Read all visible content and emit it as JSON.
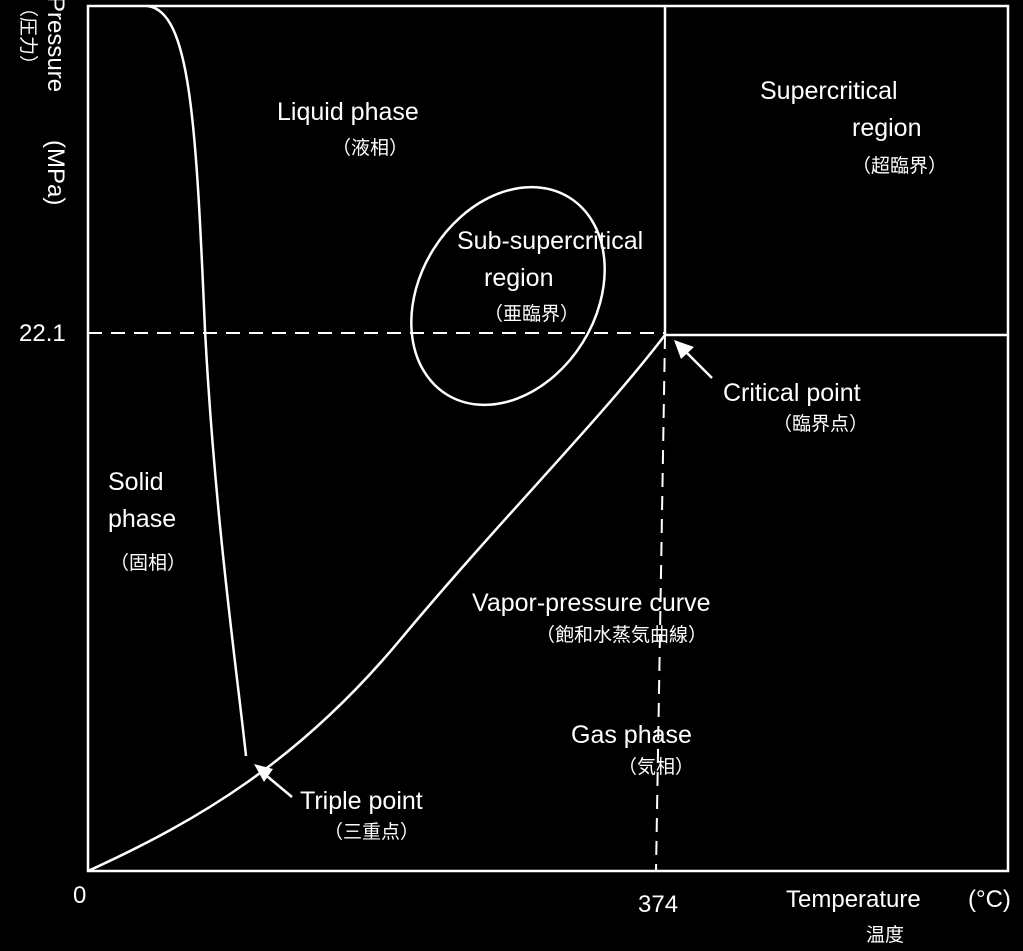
{
  "axes": {
    "y_label_en": "Pressure",
    "y_label_unit": "(MPa)",
    "y_label_jp": "（圧力）",
    "x_label_en": "Temperature",
    "x_label_unit": "(°C)",
    "x_label_jp": "温度",
    "origin": "0",
    "critical_pressure": "22.1",
    "critical_temperature": "374"
  },
  "regions": {
    "liquid": {
      "en": "Liquid phase",
      "jp": "（液相）"
    },
    "supercritical": {
      "en_line1": "Supercritical",
      "en_line2": "region",
      "jp": "（超臨界）"
    },
    "subsupercritical": {
      "en_line1": "Sub-supercritical",
      "en_line2": "region",
      "jp": "（亜臨界）"
    },
    "solid": {
      "en_line1": "Solid",
      "en_line2": "phase",
      "jp": "（固相）"
    },
    "vapor_curve": {
      "en": "Vapor-pressure curve",
      "jp": "（飽和水蒸気曲線）"
    },
    "gas": {
      "en": "Gas phase",
      "jp": "（気相）"
    }
  },
  "points": {
    "critical": {
      "en": "Critical point",
      "jp": "（臨界点）"
    },
    "triple": {
      "en": "Triple point",
      "jp": "（三重点）"
    }
  }
}
